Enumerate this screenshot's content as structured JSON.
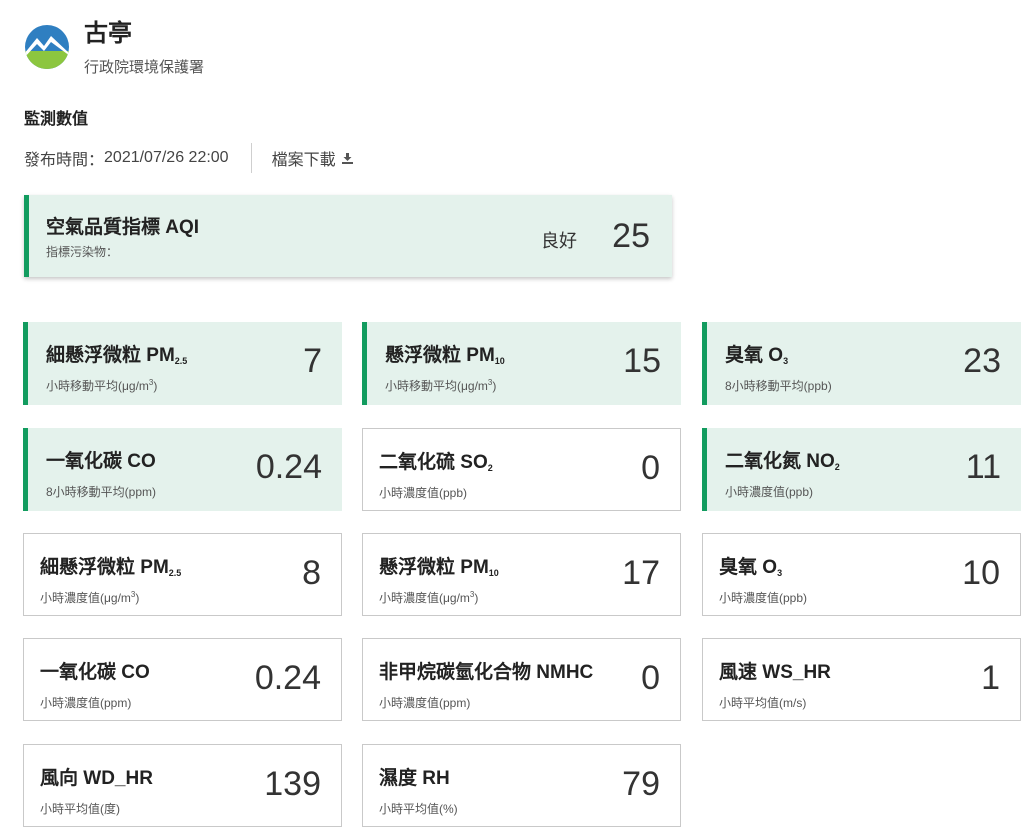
{
  "header": {
    "station": "古亭",
    "agency": "行政院環境保護署"
  },
  "section_title": "監測數值",
  "publish": {
    "label": "發布時間：",
    "time": "2021/07/26 22:00"
  },
  "download_label": "檔案下載",
  "aqi": {
    "title": "空氣品質指標 AQI",
    "sub": "指標污染物：",
    "status": "良好",
    "value": "25"
  },
  "colors": {
    "accent": "#129c5f",
    "highlight_bg": "#e4f2ec",
    "border": "#c9c9c9"
  },
  "icons": {
    "logo": "epa-logo",
    "download": "download-icon"
  },
  "cards": [
    {
      "main": "細懸浮微粒 PM",
      "sub": "2.5",
      "unit_pre": "小時移動平均(μg/m",
      "unit_sup": "3",
      "unit_post": ")",
      "value": "7",
      "highlight": true
    },
    {
      "main": "懸浮微粒 PM",
      "sub": "10",
      "unit_pre": "小時移動平均(μg/m",
      "unit_sup": "3",
      "unit_post": ")",
      "value": "15",
      "highlight": true
    },
    {
      "main": "臭氧 O",
      "sub": "3",
      "unit_pre": "8小時移動平均(ppb)",
      "unit_sup": "",
      "unit_post": "",
      "value": "23",
      "highlight": true
    },
    {
      "main": "一氧化碳 CO",
      "sub": "",
      "unit_pre": "8小時移動平均(ppm)",
      "unit_sup": "",
      "unit_post": "",
      "value": "0.24",
      "highlight": true
    },
    {
      "main": "二氧化硫 SO",
      "sub": "2",
      "unit_pre": "小時濃度值(ppb)",
      "unit_sup": "",
      "unit_post": "",
      "value": "0",
      "highlight": false
    },
    {
      "main": "二氧化氮 NO",
      "sub": "2",
      "unit_pre": "小時濃度值(ppb)",
      "unit_sup": "",
      "unit_post": "",
      "value": "11",
      "highlight": true
    },
    {
      "main": "細懸浮微粒 PM",
      "sub": "2.5",
      "unit_pre": "小時濃度值(μg/m",
      "unit_sup": "3",
      "unit_post": ")",
      "value": "8",
      "highlight": false
    },
    {
      "main": "懸浮微粒 PM",
      "sub": "10",
      "unit_pre": "小時濃度值(μg/m",
      "unit_sup": "3",
      "unit_post": ")",
      "value": "17",
      "highlight": false
    },
    {
      "main": "臭氧 O",
      "sub": "3",
      "unit_pre": "小時濃度值(ppb)",
      "unit_sup": "",
      "unit_post": "",
      "value": "10",
      "highlight": false
    },
    {
      "main": "一氧化碳 CO",
      "sub": "",
      "unit_pre": "小時濃度值(ppm)",
      "unit_sup": "",
      "unit_post": "",
      "value": "0.24",
      "highlight": false
    },
    {
      "main": "非甲烷碳氫化合物 NMHC",
      "sub": "",
      "unit_pre": "小時濃度值(ppm)",
      "unit_sup": "",
      "unit_post": "",
      "value": "0",
      "highlight": false
    },
    {
      "main": "風速 WS_HR",
      "sub": "",
      "unit_pre": "小時平均值(m/s)",
      "unit_sup": "",
      "unit_post": "",
      "value": "1",
      "highlight": false
    },
    {
      "main": "風向 WD_HR",
      "sub": "",
      "unit_pre": "小時平均值(度)",
      "unit_sup": "",
      "unit_post": "",
      "value": "139",
      "highlight": false
    },
    {
      "main": "濕度 RH",
      "sub": "",
      "unit_pre": "小時平均值(%)",
      "unit_sup": "",
      "unit_post": "",
      "value": "79",
      "highlight": false
    }
  ]
}
